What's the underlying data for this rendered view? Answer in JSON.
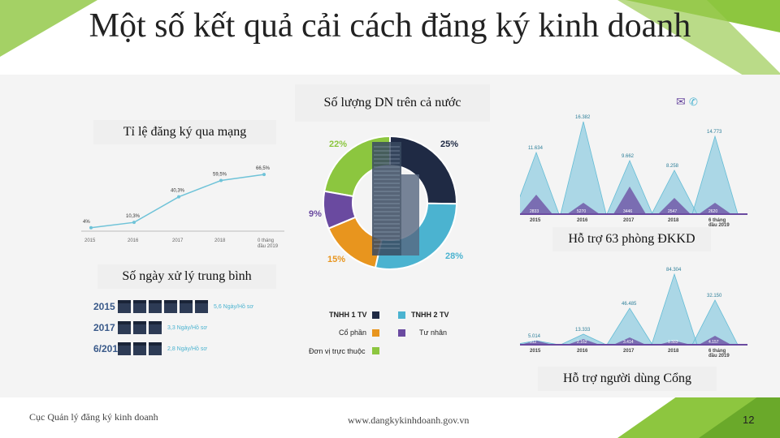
{
  "title": "Một số kết quả cải cách đăng ký kinh doanh",
  "labels": {
    "registration_online": "Tỉ lệ đăng ký qua mạng",
    "enterprise_count": "Số lượng DN trên cả nước",
    "support_offices": "Hỗ trợ 63 phòng ĐKKD",
    "processing_days": "Số ngày xử lý trung bình",
    "portal_support": "Hỗ trợ người dùng Cổng"
  },
  "footer": {
    "agency": "Cục Quản lý đăng ký kinh doanh",
    "website": "www.dangkykinhdoanh.gov.vn",
    "page_number": "12"
  },
  "colors": {
    "green": "#8dc63f",
    "dark_navy": "#1f2a44",
    "blue": "#4bb3d0",
    "purple": "#6a4aa0",
    "orange": "#e8951e",
    "lime": "#8cc63f"
  },
  "online_chart": {
    "years": [
      "2015",
      "2016",
      "2017",
      "2018",
      "0 tháng\nđầu 2019"
    ],
    "values": [
      4,
      10.3,
      40.3,
      59.5,
      66.5
    ],
    "value_labels": [
      "4%",
      "10,3%",
      "40,3%",
      "59,5%",
      "66,5%"
    ]
  },
  "donut": {
    "slices": [
      {
        "label": "22%",
        "value": 22,
        "color": "#8cc63f"
      },
      {
        "label": "25%",
        "value": 25,
        "color": "#1f2a44"
      },
      {
        "label": "28%",
        "value": 28,
        "color": "#4bb3d0"
      },
      {
        "label": "15%",
        "value": 15,
        "color": "#e8951e"
      },
      {
        "label": "9%",
        "value": 9,
        "color": "#6a4aa0"
      }
    ],
    "legend": [
      "TNHH 1 TV",
      "TNHH 2 TV",
      "Cổ phần",
      "Tư nhân",
      "Đơn vị trực thuộc"
    ]
  },
  "support_chart": {
    "years": [
      "2015",
      "2016",
      "2017",
      "2018",
      "6 tháng\nđầu 2019"
    ],
    "peaks": [
      "11.634",
      "16.382",
      "9.662",
      "8.258",
      "14.773"
    ],
    "lower": [
      "2833",
      "5270",
      "3446",
      "2547",
      "2620"
    ]
  },
  "portal_chart": {
    "years": [
      "2015",
      "2016",
      "2017",
      "2018",
      "6 tháng\nđầu 2019"
    ],
    "peaks": [
      "5.014",
      "13.333",
      "46.485",
      "84.304",
      "32.150"
    ],
    "lower": [
      "312",
      "2.162",
      "3.414",
      "1.383",
      "4.157"
    ]
  },
  "days": {
    "rows": [
      {
        "year": "2015",
        "text": "5,6 Ngày/Hồ sơ"
      },
      {
        "year": "2017",
        "text": "3,3 Ngày/Hồ sơ"
      },
      {
        "year": "6/2019",
        "text": "2,8 Ngày/Hồ sơ"
      }
    ]
  }
}
